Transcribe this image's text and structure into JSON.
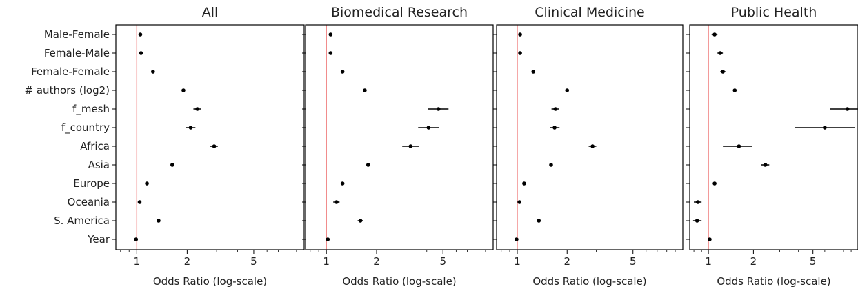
{
  "colors": {
    "reference_line": "#f08080",
    "separator": "#d9d9d9",
    "points": "#000000",
    "axes": "#000000"
  },
  "chart_data": [
    {
      "type": "scatter",
      "title": "All",
      "xlabel": "Odds Ratio (log-scale)",
      "xscale": "log",
      "xlim": [
        0.75,
        10
      ],
      "xticks": [
        1,
        2,
        5
      ],
      "reference_x": 1,
      "categories": [
        "Male-Female",
        "Female-Male",
        "Female-Female",
        "# authors (log2)",
        "f_mesh",
        "f_country",
        "Africa",
        "Asia",
        "Europe",
        "Oceania",
        "S. America",
        "Year"
      ],
      "values": [
        1.05,
        1.06,
        1.25,
        1.9,
        2.3,
        2.1,
        2.9,
        1.63,
        1.15,
        1.04,
        1.35,
        0.99
      ],
      "ci_low": [
        1.03,
        1.04,
        1.23,
        1.87,
        2.18,
        1.97,
        2.75,
        1.6,
        1.13,
        1.02,
        1.32,
        0.98
      ],
      "ci_high": [
        1.07,
        1.08,
        1.27,
        1.93,
        2.42,
        2.24,
        3.05,
        1.66,
        1.17,
        1.06,
        1.38,
        1.0
      ],
      "grid": false
    },
    {
      "type": "scatter",
      "title": "Biomedical Research",
      "xlabel": "Odds Ratio (log-scale)",
      "xscale": "log",
      "xlim": [
        0.75,
        10
      ],
      "xticks": [
        1,
        2,
        5
      ],
      "reference_x": 1,
      "categories": [
        "Male-Female",
        "Female-Male",
        "Female-Female",
        "# authors (log2)",
        "f_mesh",
        "f_country",
        "Africa",
        "Asia",
        "Europe",
        "Oceania",
        "S. America",
        "Year"
      ],
      "values": [
        1.06,
        1.06,
        1.25,
        1.7,
        4.7,
        4.1,
        3.2,
        1.78,
        1.25,
        1.15,
        1.6,
        1.02
      ],
      "ci_low": [
        1.04,
        1.04,
        1.23,
        1.67,
        4.05,
        3.55,
        2.85,
        1.75,
        1.23,
        1.1,
        1.54,
        1.01
      ],
      "ci_high": [
        1.08,
        1.08,
        1.27,
        1.73,
        5.4,
        4.75,
        3.6,
        1.81,
        1.27,
        1.2,
        1.66,
        1.03
      ],
      "grid": false
    },
    {
      "type": "scatter",
      "title": "Clinical Medicine",
      "xlabel": "Odds Ratio (log-scale)",
      "xscale": "log",
      "xlim": [
        0.75,
        10
      ],
      "xticks": [
        1,
        2,
        5
      ],
      "reference_x": 1,
      "categories": [
        "Male-Female",
        "Female-Male",
        "Female-Female",
        "# authors (log2)",
        "f_mesh",
        "f_country",
        "Africa",
        "Asia",
        "Europe",
        "Oceania",
        "S. America",
        "Year"
      ],
      "values": [
        1.04,
        1.04,
        1.25,
        2.0,
        1.7,
        1.68,
        2.85,
        1.6,
        1.1,
        1.03,
        1.35,
        0.99
      ],
      "ci_low": [
        1.02,
        1.02,
        1.23,
        1.97,
        1.61,
        1.57,
        2.7,
        1.57,
        1.08,
        1.01,
        1.32,
        0.98
      ],
      "ci_high": [
        1.06,
        1.06,
        1.27,
        2.03,
        1.79,
        1.8,
        3.0,
        1.63,
        1.12,
        1.05,
        1.38,
        1.0
      ],
      "grid": false
    },
    {
      "type": "scatter",
      "title": "Public Health",
      "xlabel": "Odds Ratio (log-scale)",
      "xscale": "log",
      "xlim": [
        0.75,
        10
      ],
      "xticks": [
        1,
        2,
        5
      ],
      "reference_x": 1,
      "categories": [
        "Male-Female",
        "Female-Male",
        "Female-Female",
        "# authors (log2)",
        "f_mesh",
        "f_country",
        "Africa",
        "Asia",
        "Europe",
        "Oceania",
        "S. America",
        "Year"
      ],
      "values": [
        1.1,
        1.2,
        1.25,
        1.5,
        8.5,
        6.0,
        1.6,
        2.4,
        1.1,
        0.85,
        0.84,
        1.02
      ],
      "ci_low": [
        1.05,
        1.15,
        1.2,
        1.47,
        6.5,
        3.8,
        1.25,
        2.25,
        1.07,
        0.8,
        0.79,
        1.01
      ],
      "ci_high": [
        1.15,
        1.25,
        1.3,
        1.53,
        10.5,
        9.5,
        1.95,
        2.55,
        1.13,
        0.9,
        0.9,
        1.03
      ],
      "grid": false
    }
  ]
}
